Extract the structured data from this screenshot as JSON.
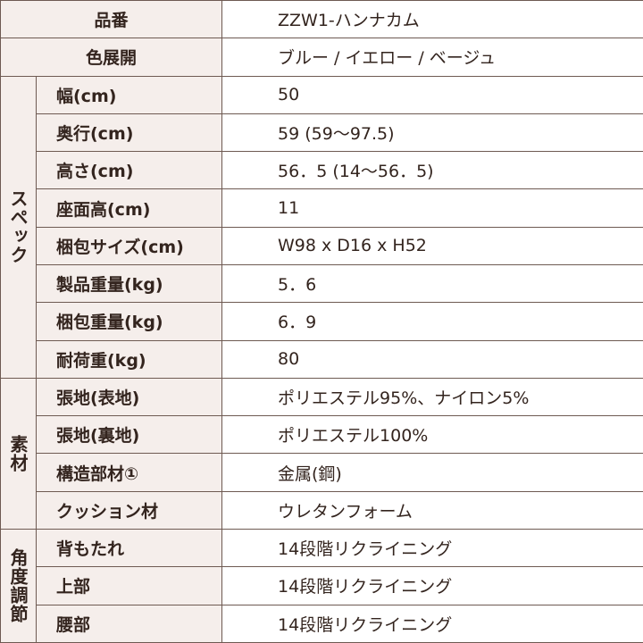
{
  "table": {
    "top_rows": [
      {
        "label": "品番",
        "value": "ZZW1-ハンナカム"
      },
      {
        "label": "色展開",
        "value": "ブルー / イエロー / ベージュ"
      }
    ],
    "groups": [
      {
        "label": "スペック",
        "rows": [
          {
            "label": "幅(cm)",
            "value": "50"
          },
          {
            "label": "奥行(cm)",
            "value": "59 (59〜97.5)"
          },
          {
            "label": "高さ(cm)",
            "value": "56．5 (14〜56．5)"
          },
          {
            "label": "座面高(cm)",
            "value": "11"
          },
          {
            "label": "梱包サイズ(cm)",
            "value": "W98 x D16 x H52"
          },
          {
            "label": "製品重量(kg)",
            "value": "5．6"
          },
          {
            "label": "梱包重量(kg)",
            "value": "6．9"
          },
          {
            "label": "耐荷重(kg)",
            "value": "80"
          }
        ]
      },
      {
        "label": "素材",
        "rows": [
          {
            "label": "張地(表地)",
            "value": "ポリエステル95%、ナイロン5%"
          },
          {
            "label": "張地(裏地)",
            "value": "ポリエステル100%"
          },
          {
            "label": "構造部材①",
            "value": "金属(鋼)"
          },
          {
            "label": "クッション材",
            "value": "ウレタンフォーム"
          }
        ]
      },
      {
        "label": "角度調節",
        "rows": [
          {
            "label": "背もたれ",
            "value": "14段階リクライニング"
          },
          {
            "label": "上部",
            "value": "14段階リクライニング"
          },
          {
            "label": "腰部",
            "value": "14段階リクライニング"
          }
        ]
      }
    ]
  }
}
